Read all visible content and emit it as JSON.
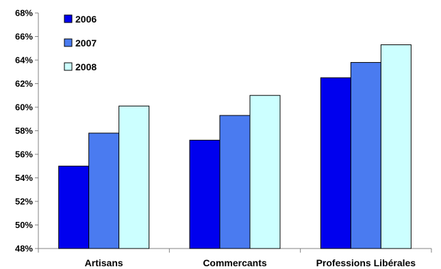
{
  "chart_data": {
    "type": "bar",
    "title": "",
    "xlabel": "",
    "ylabel": "",
    "categories": [
      "Artisans",
      "Commercants",
      "Professions Libérales"
    ],
    "series": [
      {
        "name": "2006",
        "color": "#0000ee",
        "values": [
          55.0,
          57.2,
          62.5
        ]
      },
      {
        "name": "2007",
        "color": "#4a7bf0",
        "values": [
          57.8,
          59.3,
          63.8
        ]
      },
      {
        "name": "2008",
        "color": "#ccffff",
        "values": [
          60.1,
          61.0,
          65.3
        ]
      }
    ],
    "ylim": [
      48,
      68
    ],
    "y_ticks": [
      "48%",
      "50%",
      "52%",
      "54%",
      "56%",
      "58%",
      "60%",
      "62%",
      "64%",
      "66%",
      "68%"
    ],
    "grid": false,
    "legend_position": "top-left"
  }
}
